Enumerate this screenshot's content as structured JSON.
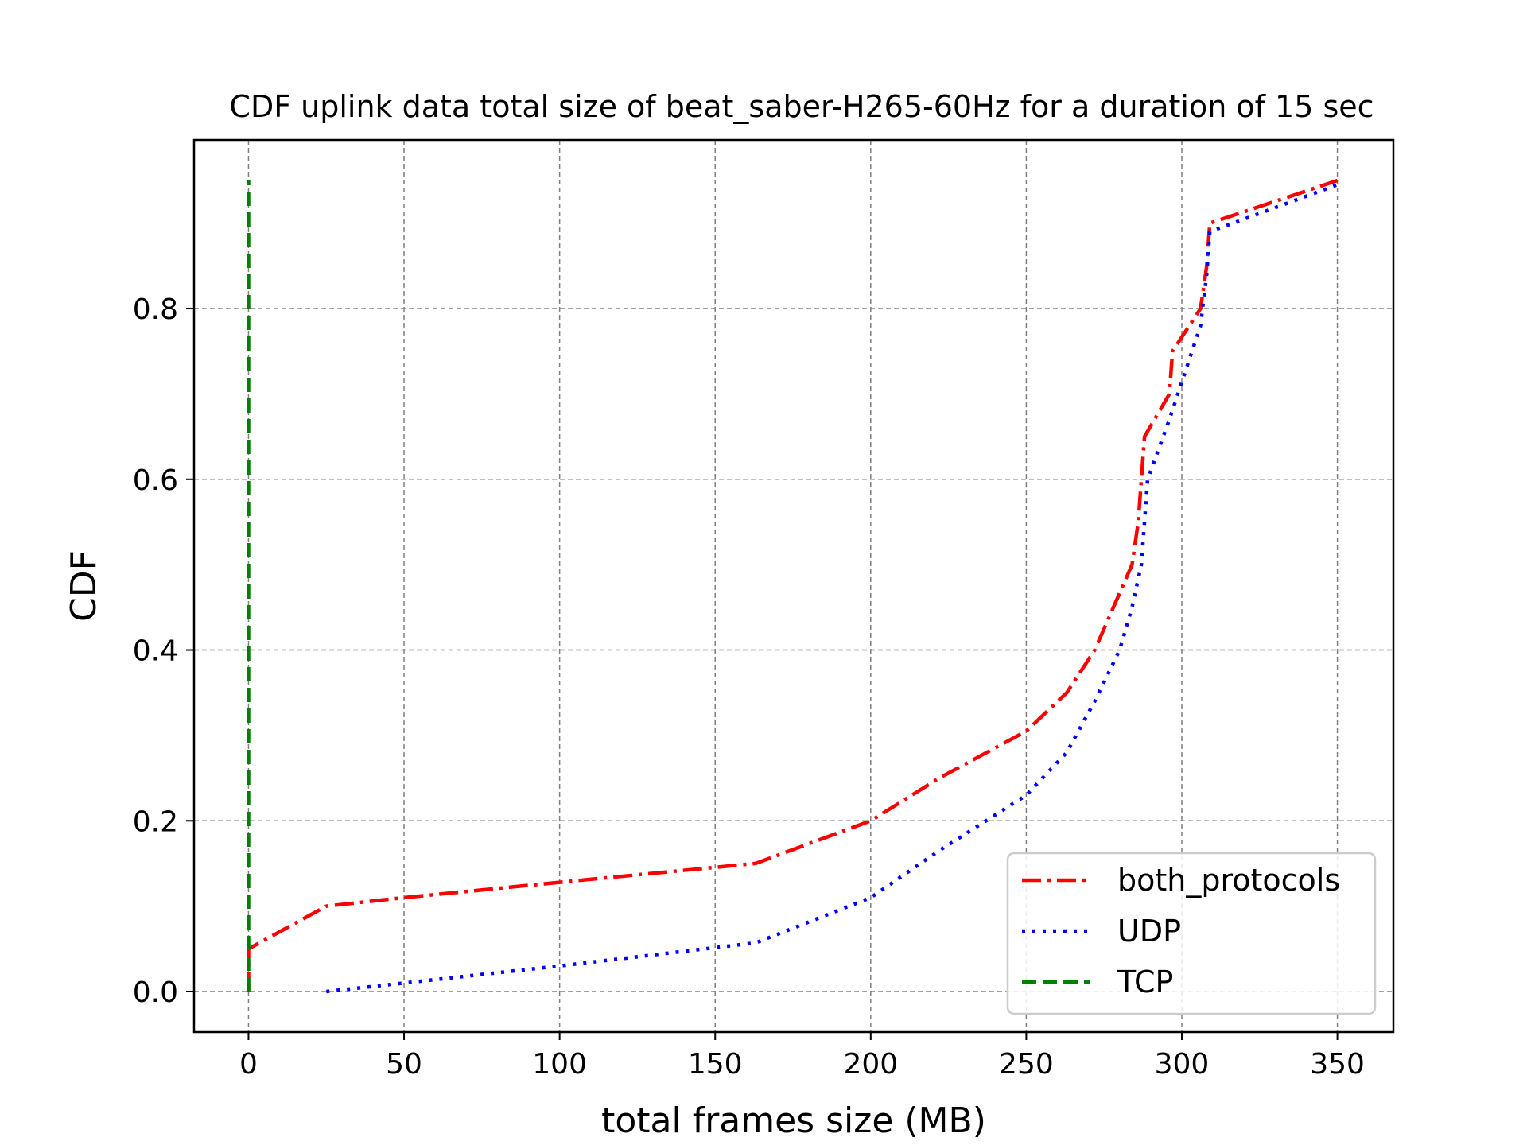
{
  "chart_data": {
    "type": "line",
    "title": "CDF uplink data total size of beat_saber-H265-60Hz for a duration of 15 sec",
    "xlabel": "total frames size (MB)",
    "ylabel": "CDF",
    "xlim": [
      -17.5,
      368
    ],
    "ylim": [
      -0.0475,
      0.9975
    ],
    "xticks": [
      0,
      50,
      100,
      150,
      200,
      250,
      300,
      350
    ],
    "xtick_labels": [
      "0",
      "50",
      "100",
      "150",
      "200",
      "250",
      "300",
      "350"
    ],
    "yticks": [
      0.0,
      0.2,
      0.4,
      0.6,
      0.8
    ],
    "ytick_labels": [
      "0.0",
      "0.2",
      "0.4",
      "0.6",
      "0.8"
    ],
    "grid": true,
    "legend_position": "lower-right",
    "series": [
      {
        "name": "both_protocols",
        "color": "#ff0000",
        "style": "dashdot",
        "x": [
          0,
          0,
          0,
          0,
          25,
          50,
          100,
          163,
          200,
          222,
          250,
          263,
          272,
          284,
          286,
          288,
          296,
          297,
          306,
          308,
          309,
          350
        ],
        "y": [
          0.0,
          0.02,
          0.035,
          0.05,
          0.1,
          0.11,
          0.128,
          0.15,
          0.2,
          0.25,
          0.305,
          0.35,
          0.4,
          0.5,
          0.55,
          0.65,
          0.7,
          0.75,
          0.8,
          0.85,
          0.9,
          0.95
        ]
      },
      {
        "name": "UDP",
        "color": "#0000ff",
        "style": "dotted",
        "x": [
          25,
          50,
          100,
          163,
          200,
          222,
          250,
          263,
          272,
          280,
          284,
          287,
          289,
          296,
          306,
          308,
          309,
          350
        ],
        "y": [
          0.0,
          0.01,
          0.03,
          0.057,
          0.11,
          0.165,
          0.23,
          0.28,
          0.34,
          0.4,
          0.45,
          0.5,
          0.6,
          0.67,
          0.78,
          0.84,
          0.89,
          0.945
        ]
      },
      {
        "name": "TCP",
        "color": "#008000",
        "style": "dashed",
        "x": [
          0,
          0
        ],
        "y": [
          0.0,
          0.95
        ]
      }
    ]
  }
}
